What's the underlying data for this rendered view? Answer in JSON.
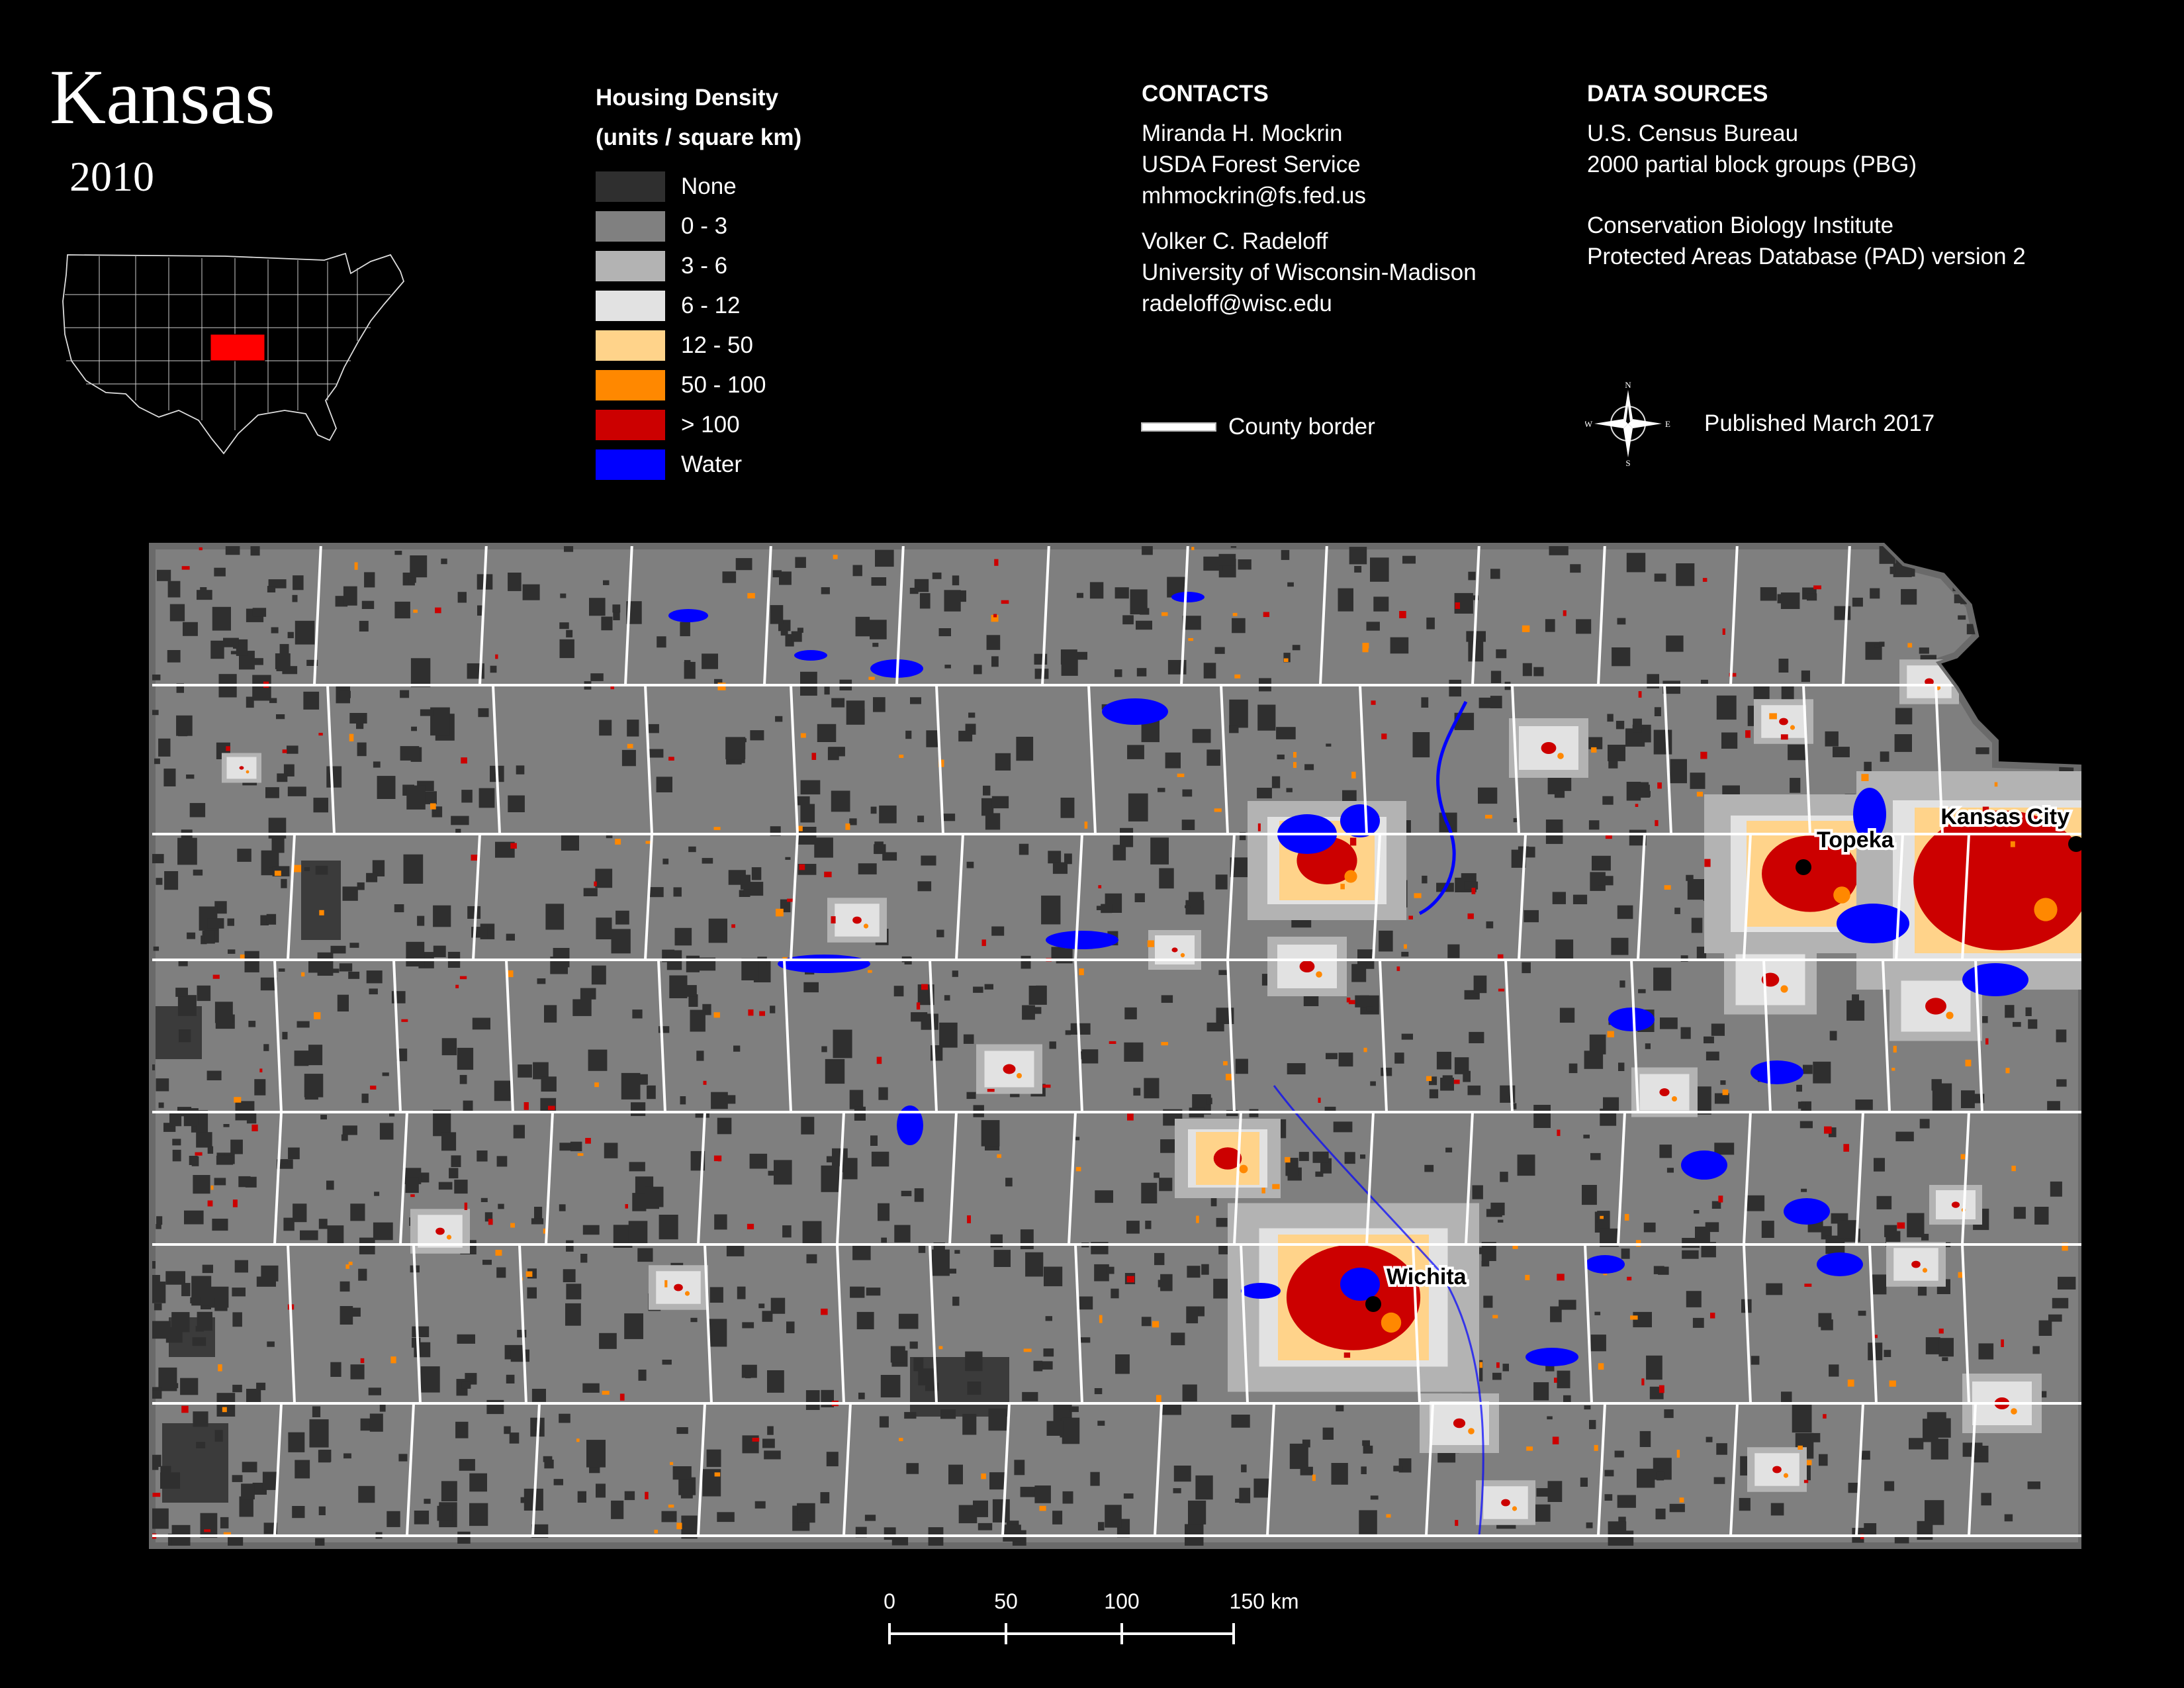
{
  "header": {
    "title": "Kansas",
    "year": "2010"
  },
  "legend": {
    "title_line1": "Housing Density",
    "title_line2": "(units / square km)",
    "items": [
      {
        "label": "None",
        "color": "#2f2f2f"
      },
      {
        "label": "0 - 3",
        "color": "#808080"
      },
      {
        "label": "3 - 6",
        "color": "#b3b3b3"
      },
      {
        "label": "6 - 12",
        "color": "#e2e2e2"
      },
      {
        "label": "12 - 50",
        "color": "#ffd38a"
      },
      {
        "label": "50 - 100",
        "color": "#ff8800"
      },
      {
        "label": "> 100",
        "color": "#cc0000"
      },
      {
        "label": "Water",
        "color": "#0000ff"
      }
    ]
  },
  "contacts": {
    "heading": "CONTACTS",
    "people": [
      {
        "name": "Miranda H. Mockrin",
        "org": "USDA Forest Service",
        "email": "mhmockrin@fs.fed.us"
      },
      {
        "name": "Volker C. Radeloff",
        "org": "University of Wisconsin-Madison",
        "email": "radeloff@wisc.edu"
      }
    ]
  },
  "sources": {
    "heading": "DATA SOURCES",
    "lines1": [
      "U.S. Census Bureau",
      "2000 partial block groups (PBG)"
    ],
    "lines2": [
      "Conservation Biology Institute",
      "Protected Areas Database (PAD) version 2"
    ]
  },
  "county_border_label": "County border",
  "published": "Published March 2017",
  "compass": {
    "n": "N",
    "s": "S",
    "e": "E",
    "w": "W"
  },
  "cities": [
    "Topeka",
    "Kansas City",
    "Wichita"
  ],
  "scale": {
    "ticks": [
      "0",
      "50",
      "100",
      "150 km"
    ]
  },
  "colors": {
    "highlight_state": "#ff0000",
    "county_line": "#ffffff",
    "map_bg": "#7f7f7f"
  }
}
